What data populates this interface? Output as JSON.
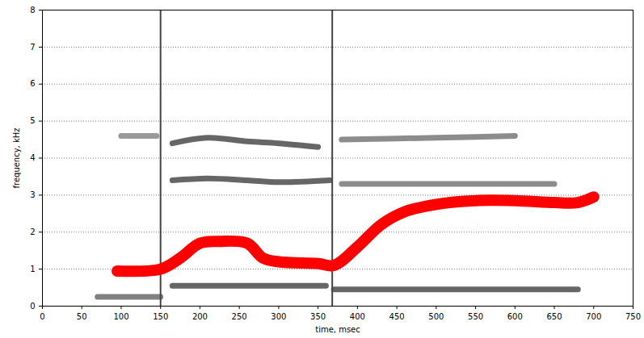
{
  "chart_data": {
    "type": "line",
    "xlabel": "time, msec",
    "ylabel": "frequency, kHz",
    "xlim": [
      0,
      750
    ],
    "xticks": [
      0,
      50,
      100,
      150,
      200,
      250,
      300,
      350,
      400,
      450,
      500,
      550,
      600,
      650,
      700,
      750
    ],
    "ylim": [
      0,
      8
    ],
    "yticks": [
      0,
      1,
      2,
      3,
      4,
      5,
      6,
      7,
      8
    ],
    "grid": true,
    "series": [
      {
        "color": "#555555",
        "line_style": "solid",
        "x": [
          70,
          150
        ],
        "values": [
          0.25,
          0.25
        ]
      },
      {
        "color": "#333333",
        "line_style": "solid",
        "x": [
          165,
          360
        ],
        "values": [
          0.55,
          0.55
        ]
      },
      {
        "color": "#333333",
        "line_style": "solid",
        "x": [
          370,
          680
        ],
        "values": [
          0.45,
          0.45
        ]
      },
      {
        "color": "#333333",
        "line_style": "solid",
        "x": [
          165,
          210,
          260,
          300,
          365
        ],
        "values": [
          3.4,
          3.45,
          3.4,
          3.35,
          3.4
        ]
      },
      {
        "color": "#333333",
        "line_style": "solid",
        "x": [
          165,
          210,
          260,
          300,
          350
        ],
        "values": [
          4.4,
          4.55,
          4.45,
          4.4,
          4.3
        ]
      },
      {
        "color": "#777777",
        "line_style": "solid",
        "x": [
          100,
          145
        ],
        "values": [
          4.6,
          4.6
        ]
      },
      {
        "color": "#666666",
        "line_style": "solid",
        "x": [
          380,
          500,
          650
        ],
        "values": [
          3.3,
          3.3,
          3.3
        ]
      },
      {
        "color": "#666666",
        "line_style": "solid",
        "x": [
          380,
          500,
          600
        ],
        "values": [
          4.5,
          4.55,
          4.6
        ]
      },
      {
        "color": "#444444",
        "line_style": "solid",
        "x": [
          150,
          150
        ],
        "values": [
          0,
          8
        ]
      },
      {
        "color": "#444444",
        "line_style": "solid",
        "x": [
          368,
          368
        ],
        "values": [
          0,
          8
        ]
      },
      {
        "color": "#ff0000",
        "line_style": "solid",
        "x": [
          95,
          150,
          175,
          200,
          225,
          260,
          280,
          300,
          350,
          370,
          400,
          430,
          460,
          500,
          550,
          600,
          650,
          680,
          700
        ],
        "values": [
          0.95,
          1.0,
          1.3,
          1.7,
          1.75,
          1.7,
          1.3,
          1.2,
          1.15,
          1.1,
          1.6,
          2.2,
          2.55,
          2.75,
          2.85,
          2.85,
          2.8,
          2.8,
          2.95
        ]
      }
    ]
  }
}
